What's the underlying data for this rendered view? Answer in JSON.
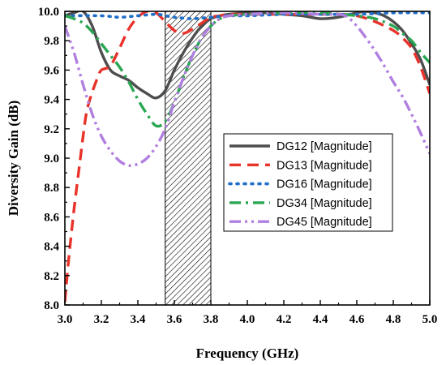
{
  "chart_data": {
    "type": "line",
    "xlabel": "Frequency (GHz)",
    "ylabel": "Diversity Gain (dB)",
    "xlim": [
      3.0,
      5.0
    ],
    "ylim": [
      8.0,
      10.0
    ],
    "xticks": [
      "3.0",
      "3.2",
      "3.4",
      "3.6",
      "3.8",
      "4.0",
      "4.2",
      "4.4",
      "4.6",
      "4.8",
      "5.0"
    ],
    "yticks": [
      "8.0",
      "8.2",
      "8.4",
      "8.6",
      "8.8",
      "9.0",
      "9.2",
      "9.4",
      "9.6",
      "9.8",
      "10.0"
    ],
    "shaded_band": [
      3.55,
      3.8
    ],
    "grid": false,
    "legend_position": "center-right",
    "series": [
      {
        "name": "DG12 [Magnitude]",
        "color": "#4d4d4d",
        "dash": "solid",
        "x": [
          3.0,
          3.05,
          3.1,
          3.15,
          3.2,
          3.25,
          3.3,
          3.35,
          3.4,
          3.45,
          3.5,
          3.55,
          3.6,
          3.65,
          3.7,
          3.75,
          3.8,
          3.85,
          3.9,
          4.0,
          4.1,
          4.2,
          4.3,
          4.4,
          4.5,
          4.6,
          4.65,
          4.7,
          4.75,
          4.8,
          4.85,
          4.9,
          4.95,
          5.0
        ],
        "y": [
          9.97,
          9.99,
          10.0,
          9.9,
          9.72,
          9.6,
          9.56,
          9.53,
          9.48,
          9.44,
          9.41,
          9.46,
          9.6,
          9.72,
          9.82,
          9.9,
          9.95,
          9.97,
          9.98,
          9.99,
          9.99,
          9.98,
          9.97,
          9.95,
          9.96,
          9.99,
          10.0,
          9.99,
          9.97,
          9.93,
          9.87,
          9.78,
          9.67,
          9.5
        ]
      },
      {
        "name": "DG13 [Magnitude]",
        "color": "#e8322a",
        "dash": "dash",
        "x": [
          3.0,
          3.02,
          3.05,
          3.08,
          3.1,
          3.12,
          3.15,
          3.18,
          3.2,
          3.25,
          3.3,
          3.35,
          3.4,
          3.45,
          3.5,
          3.55,
          3.6,
          3.65,
          3.7,
          3.75,
          3.8,
          3.85,
          3.9,
          4.0,
          4.2,
          4.4,
          4.5,
          4.6,
          4.7,
          4.8,
          4.85,
          4.9,
          4.95,
          5.0
        ],
        "y": [
          8.02,
          8.3,
          8.65,
          8.95,
          9.15,
          9.32,
          9.45,
          9.55,
          9.6,
          9.63,
          9.75,
          9.88,
          9.96,
          10.0,
          9.99,
          9.93,
          9.87,
          9.85,
          9.88,
          9.92,
          9.96,
          9.97,
          9.98,
          9.98,
          9.98,
          9.98,
          9.98,
          9.97,
          9.93,
          9.87,
          9.82,
          9.75,
          9.62,
          9.44
        ]
      },
      {
        "name": "DG16 [Magnitude]",
        "color": "#1f6fc9",
        "dash": "dot",
        "x": [
          3.0,
          3.2,
          3.3,
          3.4,
          3.5,
          3.55,
          3.6,
          3.7,
          3.8,
          3.9,
          4.0,
          4.2,
          4.4,
          4.6,
          4.8,
          5.0
        ],
        "y": [
          9.97,
          9.97,
          9.96,
          9.97,
          9.98,
          9.97,
          9.96,
          9.95,
          9.96,
          9.97,
          9.97,
          9.98,
          9.98,
          9.98,
          9.99,
          9.99
        ]
      },
      {
        "name": "DG34 [Magnitude]",
        "color": "#2aa552",
        "dash": "dashdot",
        "x": [
          3.0,
          3.05,
          3.1,
          3.15,
          3.2,
          3.25,
          3.3,
          3.35,
          3.4,
          3.45,
          3.5,
          3.55,
          3.6,
          3.65,
          3.7,
          3.75,
          3.8,
          3.85,
          3.9,
          4.0,
          4.2,
          4.4,
          4.6,
          4.7,
          4.8,
          4.85,
          4.9,
          4.95,
          5.0
        ],
        "y": [
          9.97,
          9.95,
          9.92,
          9.86,
          9.78,
          9.7,
          9.62,
          9.52,
          9.4,
          9.3,
          9.22,
          9.25,
          9.38,
          9.55,
          9.7,
          9.82,
          9.9,
          9.95,
          9.97,
          9.98,
          9.99,
          9.99,
          9.97,
          9.95,
          9.9,
          9.85,
          9.8,
          9.72,
          9.65
        ]
      },
      {
        "name": "DG45 [Magnitude]",
        "color": "#b07fe0",
        "dash": "dashdotdot",
        "x": [
          3.0,
          3.05,
          3.1,
          3.15,
          3.2,
          3.25,
          3.3,
          3.35,
          3.4,
          3.45,
          3.5,
          3.55,
          3.6,
          3.65,
          3.7,
          3.75,
          3.8,
          3.85,
          3.9,
          4.0,
          4.2,
          4.4,
          4.5,
          4.55,
          4.6,
          4.65,
          4.7,
          4.75,
          4.8,
          4.85,
          4.9,
          4.95,
          5.0
        ],
        "y": [
          9.9,
          9.72,
          9.5,
          9.3,
          9.15,
          9.05,
          8.98,
          8.95,
          8.96,
          9.0,
          9.08,
          9.2,
          9.38,
          9.55,
          9.7,
          9.82,
          9.9,
          9.95,
          9.97,
          9.98,
          9.99,
          9.98,
          9.98,
          9.96,
          9.9,
          9.82,
          9.73,
          9.63,
          9.52,
          9.42,
          9.3,
          9.17,
          9.03
        ]
      }
    ]
  }
}
